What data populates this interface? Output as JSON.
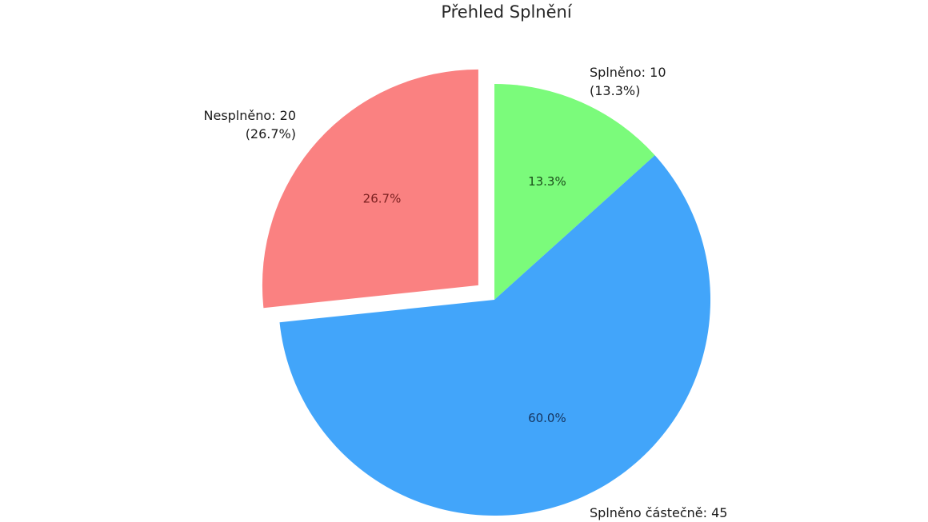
{
  "chart_data": {
    "type": "pie",
    "title": "Přehled Splnění",
    "categories": [
      "Splněno",
      "Splněno částečně",
      "Nesplněno"
    ],
    "values": [
      10,
      45,
      20
    ],
    "percentages": [
      "13.3%",
      "60.0%",
      "26.7%"
    ],
    "outer_labels": [
      [
        "Splněno: 10",
        "(13.3%)"
      ],
      [
        "Splněno částečně: 45"
      ],
      [
        "Nesplněno: 20",
        "(26.7%)"
      ]
    ],
    "colors": [
      "#7bfb7b",
      "#42a5fa",
      "#fa8181"
    ],
    "pct_label_colors": [
      "#1a4d1a",
      "#16355f",
      "#7b2020"
    ],
    "explode": [
      0,
      0,
      0.1
    ],
    "start_angle_deg": 90,
    "counterclockwise": false,
    "pct_distance": 0.6,
    "label_distance": 1.1,
    "legend": "none",
    "background": "#ffffff"
  }
}
